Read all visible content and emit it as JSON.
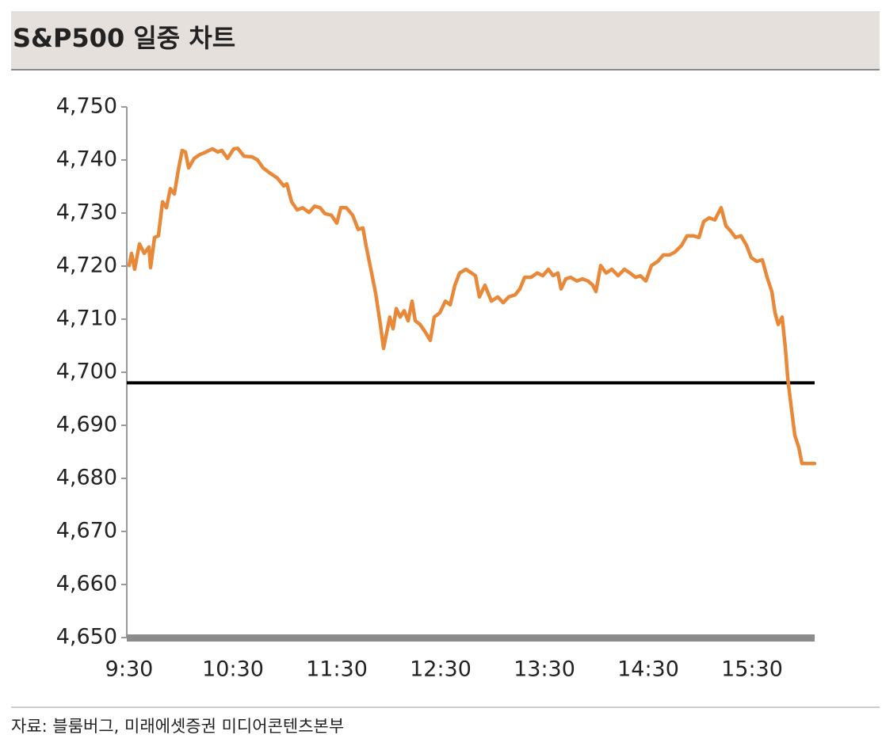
{
  "chart_data": {
    "type": "line",
    "title": "S&P500 일중 차트",
    "source": "자료: 블룸버그, 미래에셋증권 미디어콘텐츠본부",
    "color": "#e8893a",
    "reference_line": 4698,
    "reference_color": "#000000",
    "x": [
      9.5,
      9.523,
      9.553,
      9.599,
      9.645,
      9.691,
      9.706,
      9.744,
      9.782,
      9.821,
      9.859,
      9.897,
      9.935,
      9.973,
      10.011,
      10.042,
      10.073,
      10.126,
      10.179,
      10.24,
      10.302,
      10.355,
      10.393,
      10.447,
      10.508,
      10.546,
      10.607,
      10.683,
      10.737,
      10.79,
      10.851,
      10.927,
      10.989,
      11.019,
      11.065,
      11.118,
      11.172,
      11.233,
      11.286,
      11.34,
      11.385,
      11.447,
      11.5,
      11.538,
      11.592,
      11.653,
      11.706,
      11.752,
      11.782,
      11.828,
      11.874,
      11.92,
      11.95,
      11.981,
      12.011,
      12.042,
      12.073,
      12.111,
      12.149,
      12.187,
      12.225,
      12.256,
      12.302,
      12.355,
      12.401,
      12.439,
      12.492,
      12.546,
      12.592,
      12.637,
      12.683,
      12.744,
      12.798,
      12.836,
      12.874,
      12.927,
      12.989,
      13.05,
      13.103,
      13.156,
      13.218,
      13.263,
      13.309,
      13.37,
      13.431,
      13.485,
      13.538,
      13.584,
      13.63,
      13.66,
      13.706,
      13.752,
      13.813,
      13.866,
      13.92,
      13.966,
      13.996,
      14.042,
      14.095,
      14.149,
      14.21,
      14.271,
      14.324,
      14.378,
      14.424,
      14.477,
      14.531,
      14.592,
      14.645,
      14.706,
      14.76,
      14.821,
      14.874,
      14.935,
      14.989,
      15.034,
      15.088,
      15.141,
      15.202,
      15.248,
      15.294,
      15.34,
      15.393,
      15.447,
      15.492,
      15.546,
      15.599,
      15.645,
      15.691,
      15.721,
      15.752,
      15.79,
      15.821,
      15.844,
      15.874,
      15.912,
      15.95,
      15.981,
      16.042,
      16.103
    ],
    "values": [
      4720.1,
      4722.4,
      4719.4,
      4724.2,
      4722.4,
      4723.6,
      4719.7,
      4725.4,
      4725.7,
      4732.1,
      4731.0,
      4734.6,
      4733.6,
      4738.1,
      4741.8,
      4741.5,
      4738.5,
      4740.3,
      4741.0,
      4741.5,
      4742.1,
      4741.5,
      4741.8,
      4740.3,
      4742.1,
      4742.2,
      4740.7,
      4740.6,
      4740.0,
      4738.5,
      4737.6,
      4736.6,
      4735.1,
      4735.5,
      4732.1,
      4730.6,
      4731.0,
      4730.1,
      4731.3,
      4731.0,
      4729.9,
      4729.6,
      4728.1,
      4731.0,
      4731.0,
      4729.6,
      4726.9,
      4727.2,
      4723.9,
      4719.4,
      4714.9,
      4709.0,
      4704.5,
      4707.5,
      4710.4,
      4708.2,
      4712.0,
      4710.4,
      4711.6,
      4709.7,
      4713.4,
      4709.7,
      4709.0,
      4707.5,
      4706.0,
      4710.4,
      4711.2,
      4713.4,
      4712.7,
      4716.4,
      4718.7,
      4719.4,
      4718.7,
      4718.2,
      4714.2,
      4716.4,
      4713.4,
      4714.2,
      4713.1,
      4714.2,
      4714.6,
      4715.7,
      4717.9,
      4717.9,
      4718.7,
      4718.2,
      4719.4,
      4718.2,
      4718.7,
      4715.7,
      4717.6,
      4717.9,
      4717.2,
      4717.6,
      4717.2,
      4716.4,
      4715.2,
      4720.1,
      4718.7,
      4719.4,
      4718.2,
      4719.4,
      4718.7,
      4717.9,
      4718.2,
      4717.2,
      4720.1,
      4720.9,
      4722.1,
      4722.1,
      4722.7,
      4723.9,
      4725.7,
      4725.7,
      4725.4,
      4728.4,
      4729.1,
      4728.7,
      4731.0,
      4727.6,
      4726.6,
      4725.4,
      4725.7,
      4723.9,
      4721.6,
      4720.9,
      4721.2,
      4717.9,
      4715.2,
      4711.2,
      4709.0,
      4710.4,
      4704.5,
      4698.8,
      4694.0,
      4688.1,
      4685.8,
      4682.8,
      4682.8,
      4682.8
    ],
    "xlim": [
      9.5,
      16.103
    ],
    "xticks": [
      {
        "value": 9.5,
        "label": "9:30"
      },
      {
        "value": 10.5,
        "label": "10:30"
      },
      {
        "value": 11.5,
        "label": "11:30"
      },
      {
        "value": 12.5,
        "label": "12:30"
      },
      {
        "value": 13.5,
        "label": "13:30"
      },
      {
        "value": 14.5,
        "label": "14:30"
      },
      {
        "value": 15.5,
        "label": "15:30"
      }
    ],
    "ylim": [
      4650,
      4750
    ],
    "yticks": [
      {
        "value": 4650,
        "label": "4,650"
      },
      {
        "value": 4660,
        "label": "4,660"
      },
      {
        "value": 4670,
        "label": "4,670"
      },
      {
        "value": 4680,
        "label": "4,680"
      },
      {
        "value": 4690,
        "label": "4,690"
      },
      {
        "value": 4700,
        "label": "4,700"
      },
      {
        "value": 4710,
        "label": "4,710"
      },
      {
        "value": 4720,
        "label": "4,720"
      },
      {
        "value": 4730,
        "label": "4,730"
      },
      {
        "value": 4740,
        "label": "4,740"
      },
      {
        "value": 4750,
        "label": "4,750"
      }
    ]
  }
}
